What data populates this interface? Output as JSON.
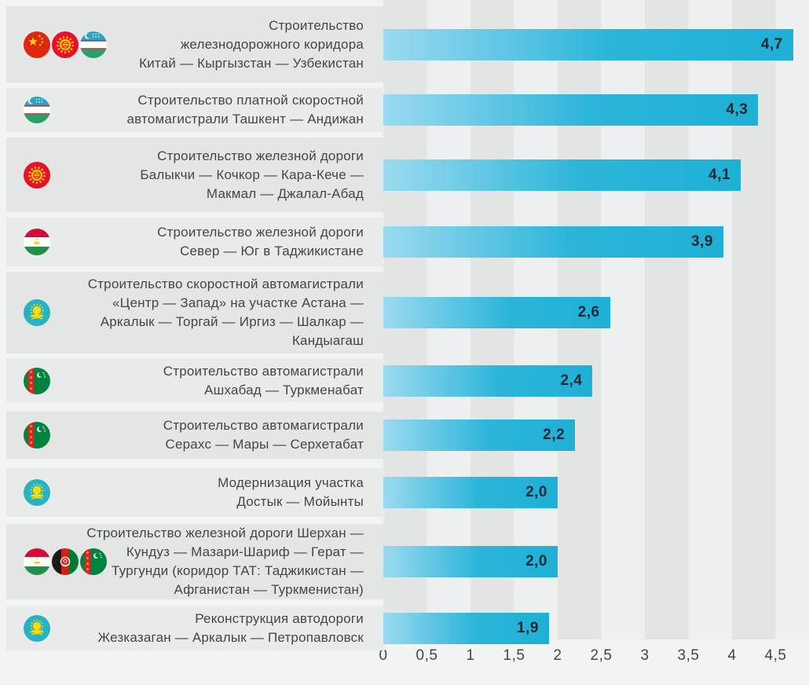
{
  "chart_data": {
    "type": "bar",
    "orientation": "horizontal",
    "title": "",
    "xlabel": "",
    "ylabel": "",
    "xlim": [
      0,
      4.5
    ],
    "x_tick_labels": [
      "0",
      "0,5",
      "1",
      "1,5",
      "2",
      "2,5",
      "3",
      "3,5",
      "4",
      "4,5"
    ],
    "grid": "alternating vertical bands every 0.5 units",
    "legend_position": "none",
    "bar_gradient": [
      "#9bdaf0",
      "#1fb0d6"
    ],
    "categories": [
      "Строительство железнодорожного коридора Китай — Кыргызстан — Узбекистан",
      "Строительство платной скоростной автомагистрали Ташкент — Андижан",
      "Строительство железной дороги Балыкчи — Кочкор — Кара-Кече — Макмал — Джалал-Абад",
      "Строительство железной дороги Север — Юг в Таджикистане",
      "Строительство скоростной автомагистрали «Центр — Запад» на участке Астана — Аркалык — Торгай — Иргиз — Шалкар — Кандыагаш",
      "Строительство автомагистрали Ашхабад — Туркменабат",
      "Строительство автомагистрали Серахс — Мары — Серхетабат",
      "Модернизация участка Достык — Мойынты",
      "Строительство железной дороги Шерхан — Кундуз — Мазари-Шариф — Герат — Тургунди (коридор ТАТ: Таджикистан — Афганистан — Туркменистан)",
      "Реконструкция автодороги Жезказаган — Аркалык — Петропавловск"
    ],
    "values": [
      4.7,
      4.3,
      4.1,
      3.9,
      2.6,
      2.4,
      2.2,
      2.0,
      2.0,
      1.9
    ],
    "value_labels": [
      "4,7",
      "4,3",
      "4,1",
      "3,9",
      "2,6",
      "2,4",
      "2,2",
      "2,0",
      "2,0",
      "1,9"
    ]
  },
  "rows": [
    {
      "flags": [
        "flag-china",
        "flag-kyrgyzstan",
        "flag-uzbekistan"
      ],
      "label_lines": [
        "Строительство",
        "железнодорожного коридора",
        "Китай — Кыргызстан — Узбекистан"
      ],
      "value": 4.7,
      "value_label": "4,7"
    },
    {
      "flags": [
        "flag-uzbekistan"
      ],
      "label_lines": [
        "Строительство платной скоростной",
        "автомагистрали Ташкент — Андижан"
      ],
      "value": 4.3,
      "value_label": "4,3"
    },
    {
      "flags": [
        "flag-kyrgyzstan"
      ],
      "label_lines": [
        "Строительство железной дороги",
        "Балыкчи — Кочкор — Кара-Кече —",
        "Макмал — Джалал-Абад"
      ],
      "value": 4.1,
      "value_label": "4,1"
    },
    {
      "flags": [
        "flag-tajikistan"
      ],
      "label_lines": [
        "Строительство железной дороги",
        "Север — Юг в Таджикистане"
      ],
      "value": 3.9,
      "value_label": "3,9"
    },
    {
      "flags": [
        "flag-kazakhstan"
      ],
      "label_lines": [
        "Строительство скоростной автомагистрали",
        "«Центр — Запад» на участке Астана —",
        "Аркалык — Торгай — Иргиз — Шалкар —",
        "Кандыагаш"
      ],
      "value": 2.6,
      "value_label": "2,6"
    },
    {
      "flags": [
        "flag-turkmenistan"
      ],
      "label_lines": [
        "Строительство автомагистрали",
        "Ашхабад — Туркменабат"
      ],
      "value": 2.4,
      "value_label": "2,4"
    },
    {
      "flags": [
        "flag-turkmenistan"
      ],
      "label_lines": [
        "Строительство автомагистрали",
        "Серахс — Мары — Серхетабат"
      ],
      "value": 2.2,
      "value_label": "2,2"
    },
    {
      "flags": [
        "flag-kazakhstan"
      ],
      "label_lines": [
        "Модернизация участка",
        "Достык — Мойынты"
      ],
      "value": 2.0,
      "value_label": "2,0"
    },
    {
      "flags": [
        "flag-tajikistan",
        "flag-afghanistan",
        "flag-turkmenistan"
      ],
      "label_lines": [
        "Строительство железной дороги Шерхан —",
        "Кундуз — Мазари-Шариф — Герат —",
        "Тургунди (коридор ТАТ: Таджикистан —",
        "Афганистан — Туркменистан)"
      ],
      "value": 2.0,
      "value_label": "2,0"
    },
    {
      "flags": [
        "flag-kazakhstan"
      ],
      "label_lines": [
        "Реконструкция автодороги",
        "Жезказаган — Аркалык — Петропавловск"
      ],
      "value": 1.9,
      "value_label": "1,9"
    }
  ],
  "axis": {
    "tick_labels": [
      "0",
      "0,5",
      "1",
      "1,5",
      "2",
      "2,5",
      "3",
      "3,5",
      "4",
      "4,5"
    ]
  },
  "colors": {
    "page_background": "#f1f3f4",
    "row_band_odd": "#e4e6e6",
    "row_band_even": "#e9ebeb",
    "stripe_dark": "#e3e5e5",
    "stripe_light": "#edf0f0",
    "bar_gradient_start": "#9bdaf0",
    "bar_gradient_end": "#1fb0d6",
    "value_text": "#1d2836",
    "label_text": "#41464c",
    "axis_text": "#3f464e"
  }
}
